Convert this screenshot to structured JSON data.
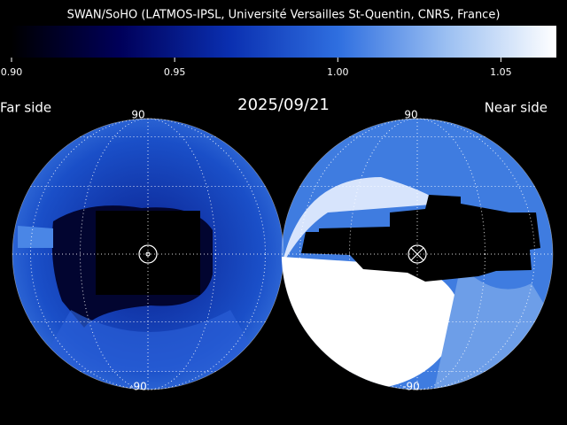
{
  "header": {
    "title": "SWAN/SoHO (LATMOS-IPSL, Université Versailles St-Quentin, CNRS, France)"
  },
  "colorbar": {
    "lim": [
      0.9,
      1.067
    ],
    "ticks": [
      {
        "value": 0.9,
        "label": "0.90"
      },
      {
        "value": 0.95,
        "label": "0.95"
      },
      {
        "value": 1.0,
        "label": "1.00"
      },
      {
        "value": 1.05,
        "label": "1.05"
      }
    ],
    "colors": [
      "#000000",
      "#00005a",
      "#0a2fb0",
      "#2f6fe0",
      "#9cc0f2",
      "#ffffff"
    ]
  },
  "date": "2025/09/21",
  "panels": [
    {
      "label": "Far side",
      "top_label": "90",
      "bottom_label": "-90"
    },
    {
      "label": "Near side",
      "top_label": "90",
      "bottom_label": "-90"
    }
  ]
}
